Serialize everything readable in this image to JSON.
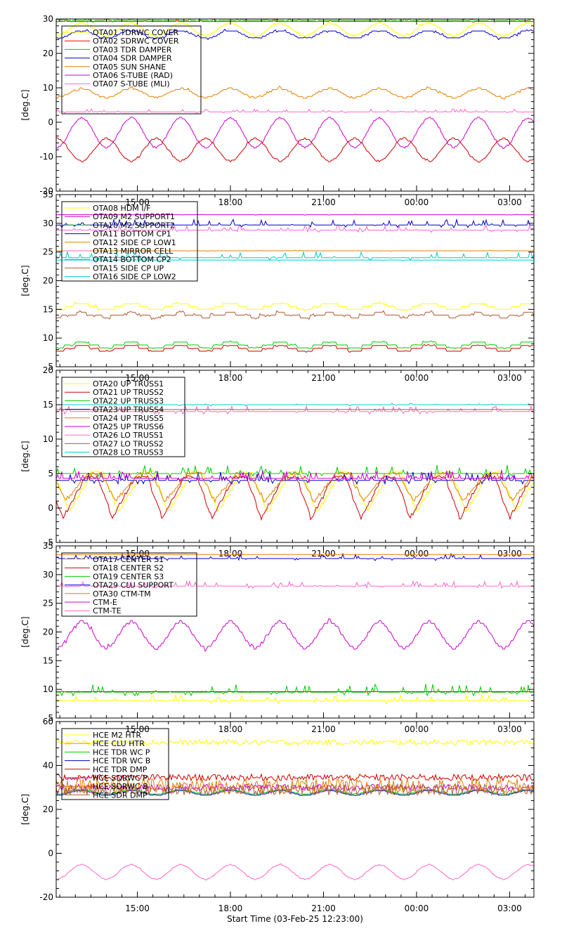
{
  "xlabel": "Start Time (03-Feb-25 12:23:00)",
  "x_axis": {
    "start_hour": 12.383,
    "end_hour": 27.783,
    "ticks": [
      {
        "hour": 15,
        "label": "15:00"
      },
      {
        "hour": 18,
        "label": "18:00"
      },
      {
        "hour": 21,
        "label": "21:00"
      },
      {
        "hour": 24,
        "label": "00:00"
      },
      {
        "hour": 27,
        "label": "03:00"
      }
    ]
  },
  "chart_data": [
    {
      "type": "line",
      "ylabel": "[deg.C]",
      "ylim": [
        -20,
        30
      ],
      "yticks": [
        -20,
        -10,
        0,
        10,
        20,
        30
      ],
      "series": [
        {
          "name": "OTA01 TDRWC COVER",
          "color": "#ffff00",
          "pattern": "wave",
          "base": 27,
          "amp": 1.8,
          "period": 1.6,
          "noise": 0.5
        },
        {
          "name": "OTA02 SDRWC COVER",
          "color": "#ff0000",
          "pattern": "flat",
          "base": 29.3,
          "noise": 0.3
        },
        {
          "name": "OTA03 TDR DAMPER",
          "color": "#00cc00",
          "pattern": "spiky",
          "base": 29.6,
          "noise": 0.6
        },
        {
          "name": "OTA04 SDR DAMPER",
          "color": "#0000cc",
          "pattern": "wave",
          "base": 25.5,
          "amp": 1.2,
          "period": 1.6,
          "noise": 0.5
        },
        {
          "name": "OTA05 SUN SHANE",
          "color": "#e08000",
          "pattern": "wave",
          "base": 8.5,
          "amp": 1.3,
          "period": 1.6,
          "noise": 0.5
        },
        {
          "name": "OTA06 S-TUBE (RAD)",
          "color": "#cc00cc",
          "pattern": "wave",
          "base": -3,
          "amp": 4.3,
          "period": 1.6,
          "noise": 0.4
        },
        {
          "name": "OTA07 S-TUBE (MLI)",
          "color": "#ff66cc",
          "pattern": "spiky",
          "base": 3,
          "noise": 0.4
        },
        {
          "name": "",
          "color": "#cc0000",
          "pattern": "wave",
          "base": -8,
          "amp": 3.3,
          "period": 1.6,
          "phase": 0.8,
          "noise": 0.4
        }
      ],
      "legend": "top-left"
    },
    {
      "type": "line",
      "ylabel": "[deg.C]",
      "ylim": [
        5,
        35
      ],
      "yticks": [
        5,
        10,
        15,
        20,
        25,
        30,
        35
      ],
      "series": [
        {
          "name": "OTA08 HDM I/F",
          "color": "#ffff00",
          "pattern": "wave",
          "base": 15.5,
          "amp": 0.5,
          "period": 1.6,
          "noise": 0.3
        },
        {
          "name": "OTA09 M2 SUPPORT1",
          "color": "#cc00cc",
          "pattern": "flat",
          "base": 31.5,
          "noise": 0.1
        },
        {
          "name": "OTA10 M2 SUPPORT2",
          "color": "#00cc00",
          "pattern": "wave",
          "base": 8.8,
          "amp": 0.4,
          "period": 1.6,
          "noise": 0.2
        },
        {
          "name": "OTA11 BOTTOM CP1",
          "color": "#0000cc",
          "pattern": "spiky",
          "base": 29.7,
          "noise": 0.5
        },
        {
          "name": "OTA12 SIDE CP LOW1",
          "color": "#e08000",
          "pattern": "flat",
          "base": 25.2,
          "noise": 0.1
        },
        {
          "name": "OTA13 MIRROR CELL",
          "color": "#ff66cc",
          "pattern": "spiky",
          "base": 28.8,
          "noise": 0.4
        },
        {
          "name": "OTA14 BOTTOM CP2",
          "color": "#00cccc",
          "pattern": "spiky",
          "base": 24,
          "noise": 0.5
        },
        {
          "name": "OTA15 SIDE CP UP",
          "color": "#b05a30",
          "pattern": "wave",
          "base": 14,
          "amp": 0.3,
          "period": 1.6,
          "noise": 0.3
        },
        {
          "name": "OTA16 SIDE CP LOW2",
          "color": "#00cccc",
          "pattern": "flat",
          "base": 23.6,
          "noise": 0.2
        },
        {
          "name": "",
          "color": "#cc0000",
          "pattern": "wave",
          "base": 8.2,
          "amp": 0.4,
          "period": 1.6,
          "noise": 0.2
        }
      ],
      "legend": "top-left"
    },
    {
      "type": "line",
      "ylabel": "[deg.C]",
      "ylim": [
        -5,
        20
      ],
      "yticks": [
        -5,
        0,
        5,
        10,
        15,
        20
      ],
      "series": [
        {
          "name": "OTA20 UP TRUSS1",
          "color": "#ffff00",
          "pattern": "saw",
          "base": 2.2,
          "amp": 2.8,
          "period": 1.6,
          "noise": 0.4
        },
        {
          "name": "OTA21 UP TRUSS2",
          "color": "#cc0000",
          "pattern": "saw",
          "base": 1.5,
          "amp": 3.0,
          "period": 1.6,
          "phase": 0.2,
          "noise": 0.4
        },
        {
          "name": "OTA22 UP TRUSS3",
          "color": "#00cc00",
          "pattern": "spiky",
          "base": 5,
          "noise": 0.6
        },
        {
          "name": "OTA23 UP TRUSS4",
          "color": "#0000cc",
          "pattern": "spiky",
          "base": 4,
          "noise": 0.6
        },
        {
          "name": "OTA24 UP TRUSS5",
          "color": "#e08000",
          "pattern": "saw",
          "base": 3,
          "amp": 2.0,
          "period": 1.6,
          "phase": 0.1,
          "noise": 0.4
        },
        {
          "name": "OTA25 UP TRUSS6",
          "color": "#cc00cc",
          "pattern": "spiky",
          "base": 4.3,
          "noise": 0.6
        },
        {
          "name": "OTA26 LO TRUSS1",
          "color": "#ff66cc",
          "pattern": "spiky",
          "base": 14,
          "noise": 0.4
        },
        {
          "name": "OTA27 LO TRUSS2",
          "color": "#b05a30",
          "pattern": "flat",
          "base": 14.3,
          "noise": 0.1
        },
        {
          "name": "OTA28 LO TRUSS3",
          "color": "#00cccc",
          "pattern": "flat",
          "base": 15,
          "noise": 0.2
        }
      ],
      "legend": "top-left"
    },
    {
      "type": "line",
      "ylabel": "[deg.C]",
      "ylim": [
        5,
        35
      ],
      "yticks": [
        5,
        10,
        15,
        20,
        25,
        30,
        35
      ],
      "series": [
        {
          "name": "OTA17 CENTER S1",
          "color": "#ffff00",
          "pattern": "spiky",
          "base": 8,
          "noise": 0.5
        },
        {
          "name": "OTA18 CENTER S2",
          "color": "#cc0000",
          "pattern": "flat",
          "base": 9.6,
          "noise": 0.1
        },
        {
          "name": "OTA19 CENTER S3",
          "color": "#00cc00",
          "pattern": "spiky",
          "base": 9.5,
          "noise": 0.7
        },
        {
          "name": "OTA29 CLU SUPPORT",
          "color": "#0000cc",
          "pattern": "spiky",
          "base": 32.8,
          "noise": 0.4
        },
        {
          "name": "OTA30 CTM-TM",
          "color": "#e08000",
          "pattern": "flat",
          "base": 33.5,
          "noise": 0.1
        },
        {
          "name": "CTM-E",
          "color": "#cc00cc",
          "pattern": "wave",
          "base": 19.5,
          "amp": 2.3,
          "period": 1.6,
          "noise": 0.4
        },
        {
          "name": "CTM-TE",
          "color": "#ff66cc",
          "pattern": "spiky",
          "base": 28,
          "noise": 0.4
        }
      ],
      "legend": "top-left"
    },
    {
      "type": "line",
      "ylabel": "[deg.C]",
      "ylim": [
        -20,
        60
      ],
      "yticks": [
        -20,
        0,
        20,
        40,
        60
      ],
      "series": [
        {
          "name": "HCE M2 HTR",
          "color": "#ffff00",
          "pattern": "noisy",
          "base": 50.5,
          "noise": 1.2
        },
        {
          "name": "HCE CLU HTR",
          "color": "#ff66cc",
          "pattern": "wave",
          "base": -8.5,
          "amp": 3.3,
          "period": 1.6,
          "noise": 0.2
        },
        {
          "name": "HCE TDR WC P",
          "color": "#00cc00",
          "pattern": "wave",
          "base": 28,
          "amp": 1.0,
          "period": 1.6,
          "noise": 0.3
        },
        {
          "name": "HCE TDR WC B",
          "color": "#0000cc",
          "pattern": "wave",
          "base": 27.5,
          "amp": 1.0,
          "period": 1.6,
          "noise": 0.3
        },
        {
          "name": "HCE TDR DMP",
          "color": "#cc0000",
          "pattern": "noisy",
          "base": 34.5,
          "noise": 1.5
        },
        {
          "name": "HCE SDRWC P",
          "color": "#cc00cc",
          "pattern": "noisy",
          "base": 30,
          "noise": 1.5
        },
        {
          "name": "HCE SDRWC B",
          "color": "#e08000",
          "pattern": "noisy",
          "base": 30.5,
          "noise": 3.5
        },
        {
          "name": "HCE SDR DMP",
          "color": "#b05a30",
          "pattern": "noisy",
          "base": 29,
          "noise": 2.5
        }
      ],
      "legend": "top-left"
    }
  ]
}
